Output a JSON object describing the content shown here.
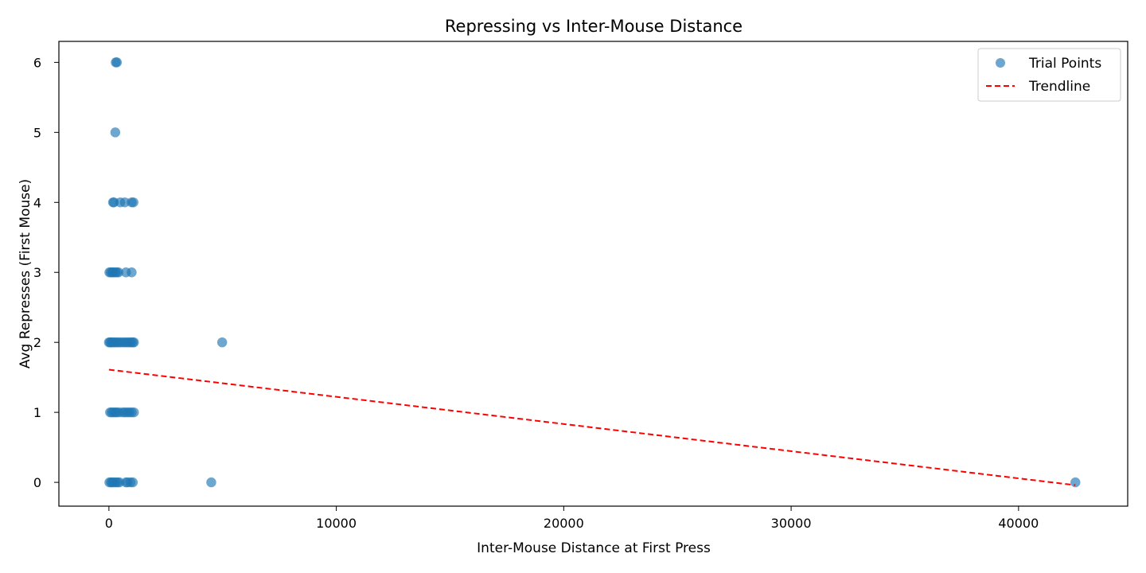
{
  "chart_data": {
    "type": "scatter",
    "title": "Repressing vs Inter-Mouse Distance",
    "xlabel": "Inter-Mouse Distance at First Press",
    "ylabel": "Avg Represses (First Mouse)",
    "xlim": [
      -2200,
      44800
    ],
    "ylim": [
      -0.34,
      6.3
    ],
    "xticks": [
      0,
      10000,
      20000,
      30000,
      40000
    ],
    "xtick_labels": [
      "0",
      "10000",
      "20000",
      "30000",
      "40000"
    ],
    "yticks": [
      0,
      1,
      2,
      3,
      4,
      5,
      6
    ],
    "ytick_labels": [
      "0",
      "1",
      "2",
      "3",
      "4",
      "5",
      "6"
    ],
    "grid": false,
    "legend_position": "top-right",
    "colors": {
      "points": "#1f77b4",
      "trendline": "#ff0000"
    },
    "series": [
      {
        "name": "Trial Points",
        "kind": "scatter",
        "points": [
          {
            "x": 300,
            "y": 6
          },
          {
            "x": 350,
            "y": 6
          },
          {
            "x": 280,
            "y": 5
          },
          {
            "x": 180,
            "y": 4
          },
          {
            "x": 220,
            "y": 4
          },
          {
            "x": 500,
            "y": 4
          },
          {
            "x": 700,
            "y": 4
          },
          {
            "x": 1000,
            "y": 4
          },
          {
            "x": 1080,
            "y": 4
          },
          {
            "x": 20,
            "y": 3
          },
          {
            "x": 80,
            "y": 3
          },
          {
            "x": 150,
            "y": 3
          },
          {
            "x": 200,
            "y": 3
          },
          {
            "x": 280,
            "y": 3
          },
          {
            "x": 350,
            "y": 3
          },
          {
            "x": 420,
            "y": 3
          },
          {
            "x": 750,
            "y": 3
          },
          {
            "x": 1000,
            "y": 3
          },
          {
            "x": 0,
            "y": 2
          },
          {
            "x": 50,
            "y": 2
          },
          {
            "x": 100,
            "y": 2
          },
          {
            "x": 160,
            "y": 2
          },
          {
            "x": 230,
            "y": 2
          },
          {
            "x": 300,
            "y": 2
          },
          {
            "x": 380,
            "y": 2
          },
          {
            "x": 460,
            "y": 2
          },
          {
            "x": 550,
            "y": 2
          },
          {
            "x": 650,
            "y": 2
          },
          {
            "x": 730,
            "y": 2
          },
          {
            "x": 820,
            "y": 2
          },
          {
            "x": 900,
            "y": 2
          },
          {
            "x": 980,
            "y": 2
          },
          {
            "x": 1050,
            "y": 2
          },
          {
            "x": 1100,
            "y": 2
          },
          {
            "x": 4980,
            "y": 2
          },
          {
            "x": 50,
            "y": 1
          },
          {
            "x": 120,
            "y": 1
          },
          {
            "x": 200,
            "y": 1
          },
          {
            "x": 280,
            "y": 1
          },
          {
            "x": 350,
            "y": 1
          },
          {
            "x": 450,
            "y": 1
          },
          {
            "x": 600,
            "y": 1
          },
          {
            "x": 700,
            "y": 1
          },
          {
            "x": 800,
            "y": 1
          },
          {
            "x": 900,
            "y": 1
          },
          {
            "x": 1000,
            "y": 1
          },
          {
            "x": 1100,
            "y": 1
          },
          {
            "x": 20,
            "y": 0
          },
          {
            "x": 90,
            "y": 0
          },
          {
            "x": 150,
            "y": 0
          },
          {
            "x": 220,
            "y": 0
          },
          {
            "x": 300,
            "y": 0
          },
          {
            "x": 380,
            "y": 0
          },
          {
            "x": 460,
            "y": 0
          },
          {
            "x": 750,
            "y": 0
          },
          {
            "x": 820,
            "y": 0
          },
          {
            "x": 950,
            "y": 0
          },
          {
            "x": 1050,
            "y": 0
          },
          {
            "x": 4500,
            "y": 0
          },
          {
            "x": 42500,
            "y": 0
          }
        ]
      },
      {
        "name": "Trendline",
        "kind": "line",
        "style": "dashed",
        "points": [
          {
            "x": 0,
            "y": 1.61
          },
          {
            "x": 42500,
            "y": -0.04
          }
        ]
      }
    ]
  }
}
